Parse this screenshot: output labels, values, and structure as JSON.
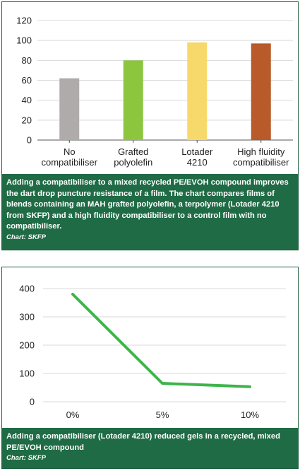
{
  "chart_data": [
    {
      "type": "bar",
      "categories": [
        "No compatibiliser",
        "Grafted polyolefin",
        "Lotader 4210",
        "High fluidity compatibiliser"
      ],
      "category_lines": [
        [
          "No",
          "compatibiliser"
        ],
        [
          "Grafted",
          "polyolefin"
        ],
        [
          "Lotader",
          "4210"
        ],
        [
          "High fluidity",
          "compatibiliser"
        ]
      ],
      "values": [
        62,
        80,
        98,
        97
      ],
      "colors": [
        "#b0abab",
        "#8cc63e",
        "#f7d96b",
        "#b85a2a"
      ],
      "ylim": [
        0,
        120
      ],
      "yticks": [
        0,
        20,
        40,
        60,
        80,
        100,
        120
      ],
      "grid": true,
      "caption": "Adding a compatibiliser to a mixed recycled PE/EVOH compound improves the dart drop puncture resistance of a film. The chart compares films of blends containing an MAH grafted polyolefin, a terpolymer (Lotader 4210 from SKFP) and a high fluidity compatibiliser to a control film with no compatibiliser.",
      "source": "Chart: SKFP"
    },
    {
      "type": "line",
      "x": [
        "0%",
        "5%",
        "10%"
      ],
      "series": [
        {
          "values": [
            380,
            65,
            53
          ],
          "color": "#3cb54a"
        }
      ],
      "ylim": [
        0,
        400
      ],
      "yticks": [
        0,
        100,
        200,
        300,
        400
      ],
      "grid": true,
      "caption": "Adding a compatibiliser (Lotader 4210) reduced gels in a recycled, mixed PE/EVOH compound",
      "source": "Chart: SKFP"
    }
  ]
}
